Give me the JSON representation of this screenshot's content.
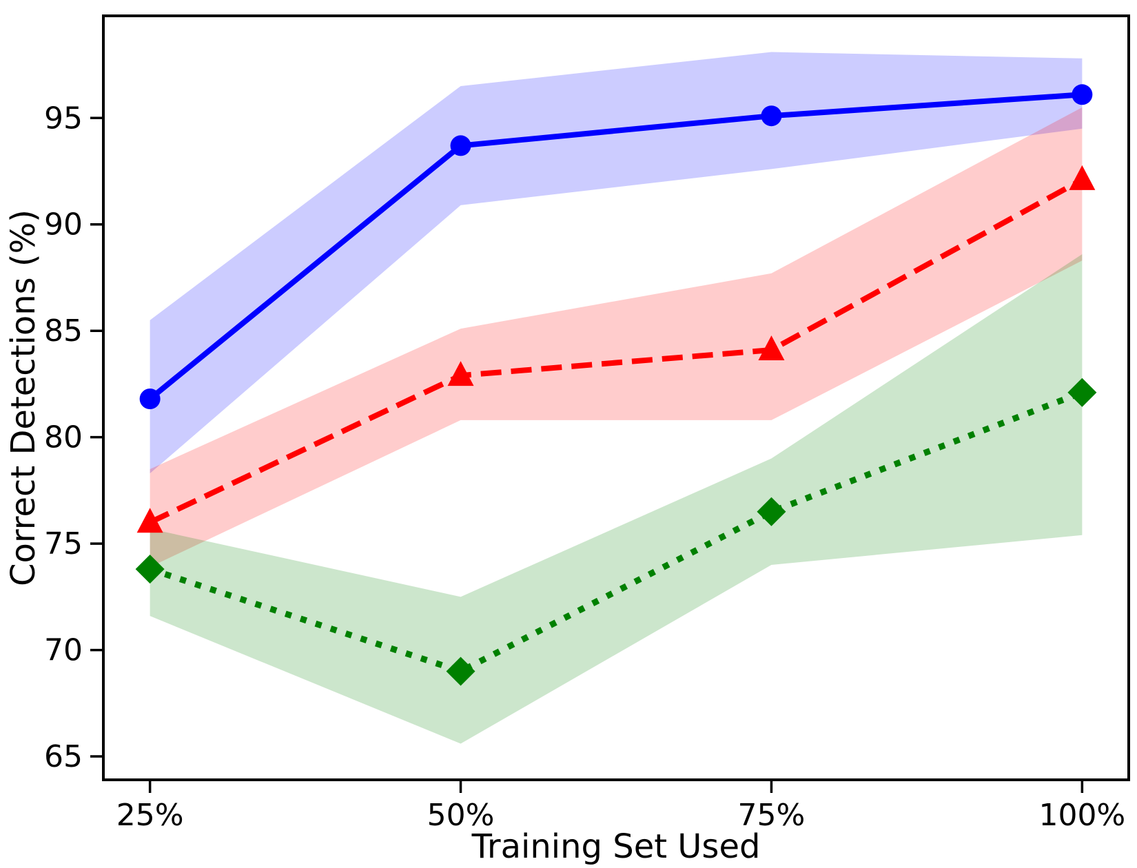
{
  "chart_data": {
    "type": "line",
    "title": "",
    "xlabel": "Training Set Used",
    "ylabel": "Correct Detections (%)",
    "x_values": [
      25,
      50,
      75,
      100
    ],
    "x_tick_labels": [
      "25%",
      "50%",
      "75%",
      "100%"
    ],
    "y_ticks": [
      65,
      70,
      75,
      80,
      85,
      90,
      95
    ],
    "xlim": [
      21.25,
      103.75
    ],
    "ylim": [
      63.9,
      99.8
    ],
    "grid": false,
    "legend": "none",
    "background_color": "#ffffff",
    "axis_color": "#000000",
    "band_alpha": 0.2,
    "series": [
      {
        "name": "blue-solid-circle",
        "color": "#0000ff",
        "line_style": "solid",
        "marker": "circle",
        "values": [
          81.8,
          93.7,
          95.1,
          96.1
        ],
        "band_upper": [
          85.5,
          96.5,
          98.1,
          97.8
        ],
        "band_lower": [
          78.3,
          90.9,
          92.6,
          94.5
        ]
      },
      {
        "name": "red-dashed-triangle",
        "color": "#ff0000",
        "line_style": "dashed",
        "marker": "triangle",
        "values": [
          76.0,
          82.9,
          84.1,
          92.1
        ],
        "band_upper": [
          78.5,
          85.1,
          87.7,
          95.5
        ],
        "band_lower": [
          73.9,
          80.8,
          80.8,
          88.3
        ]
      },
      {
        "name": "green-dotted-diamond",
        "color": "#008000",
        "line_style": "dotted",
        "marker": "diamond",
        "values": [
          73.8,
          69.0,
          76.5,
          82.1
        ],
        "band_upper": [
          75.7,
          72.5,
          79.0,
          88.6
        ],
        "band_lower": [
          71.6,
          65.6,
          74.0,
          75.4
        ]
      }
    ]
  }
}
